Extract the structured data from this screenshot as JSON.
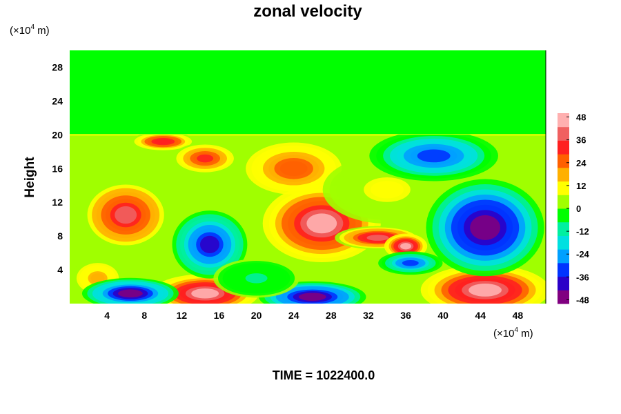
{
  "chart_data": {
    "type": "heatmap",
    "title": "zonal velocity",
    "ylabel": "Height",
    "y_unit_text": {
      "prefix": "(×10",
      "exp": "4",
      "suffix": " m)"
    },
    "x_unit_text": {
      "prefix": "(×10",
      "exp": "4",
      "suffix": " m)"
    },
    "xlim": [
      0,
      51
    ],
    "ylim": [
      0,
      30
    ],
    "x_ticks": [
      "4",
      "8",
      "12",
      "16",
      "20",
      "24",
      "28",
      "32",
      "36",
      "40",
      "44",
      "48"
    ],
    "x_tick_values": [
      4,
      8,
      12,
      16,
      20,
      24,
      28,
      32,
      36,
      40,
      44,
      48
    ],
    "y_ticks": [
      "4",
      "8",
      "12",
      "16",
      "20",
      "24",
      "28"
    ],
    "y_tick_values": [
      4,
      8,
      12,
      16,
      20,
      24,
      28
    ],
    "colorbar": {
      "range": [
        -50,
        50
      ],
      "tick_labels": [
        "48",
        "36",
        "24",
        "12",
        "0",
        "-12",
        "-24",
        "-36",
        "-48"
      ],
      "tick_values": [
        48,
        36,
        24,
        12,
        0,
        -12,
        -24,
        -36,
        -48
      ],
      "colors": [
        "#800080",
        "#2b00c8",
        "#0033ff",
        "#00a0ff",
        "#00e0e0",
        "#00f0a0",
        "#00ff00",
        "#a0ff00",
        "#ffff00",
        "#ffb000",
        "#ff6000",
        "#ff2020",
        "#f06060",
        "#ffb0b0"
      ]
    },
    "background_value": 2,
    "upper_layer_min_height": 20,
    "features": [
      {
        "x": 6,
        "y": 10.5,
        "rx": 4,
        "ry": 3.5,
        "value": 36
      },
      {
        "x": 10,
        "y": 19.2,
        "rx": 3,
        "ry": 1,
        "value": 34
      },
      {
        "x": 14.5,
        "y": 17.2,
        "rx": 3,
        "ry": 1.6,
        "value": 30
      },
      {
        "x": 24,
        "y": 16,
        "rx": 5,
        "ry": 3,
        "value": 26
      },
      {
        "x": 27,
        "y": 9.5,
        "rx": 5.5,
        "ry": 4,
        "value": 44
      },
      {
        "x": 33,
        "y": 7.8,
        "rx": 4,
        "ry": 1.2,
        "value": 40
      },
      {
        "x": 36,
        "y": 6.8,
        "rx": 2,
        "ry": 1.3,
        "value": 46
      },
      {
        "x": 14.5,
        "y": 1.2,
        "rx": 5,
        "ry": 2,
        "value": 46
      },
      {
        "x": 44.5,
        "y": 1.6,
        "rx": 6,
        "ry": 2.6,
        "value": 46
      },
      {
        "x": 34,
        "y": 13.5,
        "rx": 6,
        "ry": 3.5,
        "value": 8
      },
      {
        "x": 3,
        "y": 3,
        "rx": 2.5,
        "ry": 2,
        "value": 18
      },
      {
        "x": 44.5,
        "y": 9,
        "rx": 5.5,
        "ry": 5,
        "value": -48
      },
      {
        "x": 39,
        "y": 17.5,
        "rx": 6,
        "ry": 2.6,
        "value": -32
      },
      {
        "x": 15,
        "y": 7,
        "rx": 3.5,
        "ry": 3.5,
        "value": -36
      },
      {
        "x": 26,
        "y": 0.8,
        "rx": 5,
        "ry": 1.6,
        "value": -46
      },
      {
        "x": 6.5,
        "y": 1.2,
        "rx": 4.5,
        "ry": 1.6,
        "value": -44
      },
      {
        "x": 36.5,
        "y": 4.8,
        "rx": 3,
        "ry": 1.2,
        "value": -30
      },
      {
        "x": 20,
        "y": 3,
        "rx": 4,
        "ry": 2,
        "value": -8
      }
    ],
    "time_label": "TIME = 1022400.0"
  }
}
